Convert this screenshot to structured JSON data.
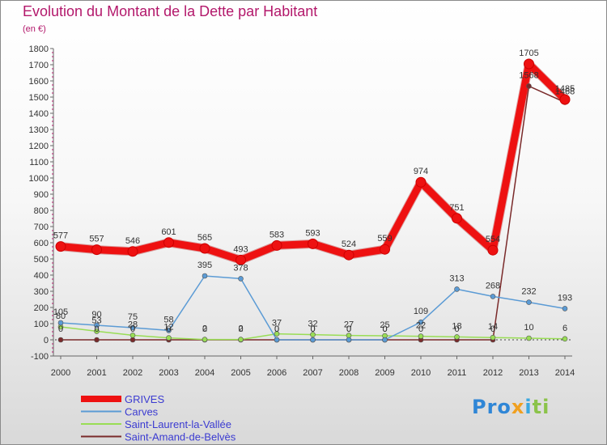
{
  "chart_data": {
    "type": "line",
    "title": "Evolution du Montant de la Dette par Habitant",
    "subtitle": "(en €)",
    "x": [
      "2000",
      "2001",
      "2002",
      "2003",
      "2004",
      "2005",
      "2006",
      "2007",
      "2008",
      "2009",
      "2010",
      "2011",
      "2012",
      "2013",
      "2014"
    ],
    "yticks": [
      -100,
      0,
      100,
      200,
      300,
      400,
      500,
      600,
      700,
      800,
      900,
      1000,
      1100,
      1200,
      1300,
      1400,
      1500,
      1600,
      1700,
      1800
    ],
    "ylim": [
      -100,
      1800
    ],
    "grid": false,
    "legend_position": "bottom-left",
    "series": [
      {
        "name": "GRIVES",
        "color": "#ee1111",
        "values": [
          577,
          557,
          546,
          601,
          565,
          493,
          583,
          593,
          524,
          559,
          974,
          751,
          554,
          1705,
          1485
        ],
        "labels": [
          "577",
          "557",
          "546",
          "601",
          "565",
          "493",
          "583",
          "593",
          "524",
          "559",
          "974",
          "751",
          "554",
          "1705",
          "1485"
        ]
      },
      {
        "name": "Carves",
        "color": "#5b9bd5",
        "values": [
          105,
          90,
          75,
          58,
          395,
          378,
          0,
          0,
          0,
          0,
          109,
          313,
          268,
          232,
          193
        ],
        "labels": [
          "105",
          "90",
          "75",
          "58",
          "395",
          "378",
          "0",
          "0",
          "0",
          "0",
          "109",
          "313",
          "268",
          "232",
          "193"
        ]
      },
      {
        "name": "Saint-Laurent-la-Vallée",
        "color": "#99dd55",
        "values": [
          80,
          53,
          28,
          12,
          2,
          2,
          37,
          32,
          27,
          25,
          22,
          18,
          14,
          10,
          6
        ],
        "labels": [
          "80",
          "53",
          "28",
          "12",
          "2",
          "2",
          "37",
          "32",
          "27",
          "25",
          "22",
          "18",
          "14",
          "10",
          "6"
        ]
      },
      {
        "name": "Saint-Amand-de-Belvès",
        "color": "#7a2a2a",
        "values": [
          0,
          0,
          0,
          0,
          0,
          0,
          0,
          0,
          0,
          0,
          0,
          0,
          0,
          1568,
          1468
        ],
        "labels": [
          "0",
          "0",
          "0",
          "0",
          "0",
          "0",
          "0",
          "0",
          "0",
          "0",
          "0",
          "0",
          "0",
          "1568",
          "1468"
        ]
      }
    ]
  },
  "branding": {
    "logo_parts": [
      "Pro",
      "x",
      "i",
      "ti"
    ]
  }
}
